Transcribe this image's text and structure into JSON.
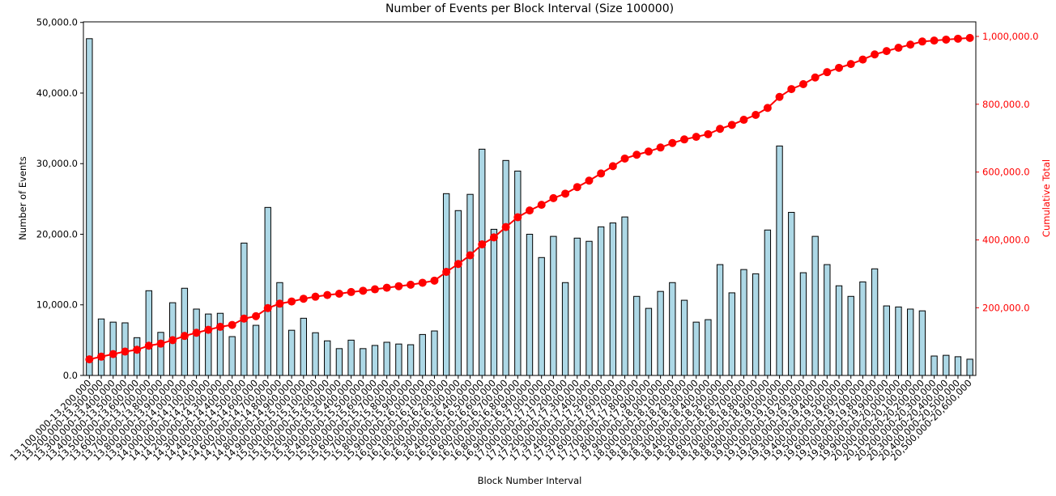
{
  "chart_data": {
    "type": "bar",
    "title": "Number of Events per Block Interval (Size 100000)",
    "xlabel": "Block Number Interval",
    "ylabel": "Number of Events",
    "y2label": "Cumulative Total",
    "categories": [
      "13,100,000-13,200,000",
      "13,200,000-13,300,000",
      "13,300,000-13,400,000",
      "13,400,000-13,500,000",
      "13,500,000-13,600,000",
      "13,600,000-13,700,000",
      "13,700,000-13,800,000",
      "13,800,000-13,900,000",
      "13,900,000-14,000,000",
      "14,000,000-14,100,000",
      "14,100,000-14,200,000",
      "14,200,000-14,300,000",
      "14,300,000-14,400,000",
      "14,400,000-14,500,000",
      "14,500,000-14,600,000",
      "14,600,000-14,700,000",
      "14,700,000-14,800,000",
      "14,800,000-14,900,000",
      "14,900,000-15,000,000",
      "15,000,000-15,100,000",
      "15,100,000-15,200,000",
      "15,200,000-15,300,000",
      "15,300,000-15,400,000",
      "15,400,000-15,500,000",
      "15,500,000-15,600,000",
      "15,600,000-15,700,000",
      "15,700,000-15,800,000",
      "15,800,000-15,900,000",
      "15,900,000-16,000,000",
      "16,000,000-16,100,000",
      "16,100,000-16,200,000",
      "16,200,000-16,300,000",
      "16,300,000-16,400,000",
      "16,400,000-16,500,000",
      "16,500,000-16,600,000",
      "16,600,000-16,700,000",
      "16,700,000-16,800,000",
      "16,800,000-16,900,000",
      "16,900,000-17,000,000",
      "17,000,000-17,100,000",
      "17,100,000-17,200,000",
      "17,200,000-17,300,000",
      "17,300,000-17,400,000",
      "17,400,000-17,500,000",
      "17,500,000-17,600,000",
      "17,600,000-17,700,000",
      "17,700,000-17,800,000",
      "17,800,000-17,900,000",
      "17,900,000-18,000,000",
      "18,000,000-18,100,000",
      "18,100,000-18,200,000",
      "18,200,000-18,300,000",
      "18,300,000-18,400,000",
      "18,400,000-18,500,000",
      "18,500,000-18,600,000",
      "18,600,000-18,700,000",
      "18,700,000-18,800,000",
      "18,800,000-18,900,000",
      "18,900,000-19,000,000",
      "19,000,000-19,100,000",
      "19,100,000-19,200,000",
      "19,200,000-19,300,000",
      "19,300,000-19,400,000",
      "19,400,000-19,500,000",
      "19,500,000-19,600,000",
      "19,600,000-19,700,000",
      "19,700,000-19,800,000",
      "19,800,000-19,900,000",
      "19,900,000-20,000,000",
      "20,000,000-20,100,000",
      "20,100,000-20,200,000",
      "20,200,000-20,300,000",
      "20,300,000-20,400,000",
      "20,400,000-20,500,000",
      "20,500,000-20,600,000"
    ],
    "series": [
      {
        "type": "bar",
        "color": "#add8e6",
        "values": [
          47700,
          8000,
          7550,
          7450,
          5350,
          12000,
          6100,
          10300,
          12350,
          9400,
          8700,
          8800,
          5500,
          18750,
          7100,
          23800,
          13150,
          6400,
          8100,
          6050,
          4900,
          3800,
          5000,
          3800,
          4250,
          4700,
          4450,
          4350,
          5800,
          6300,
          25750,
          23350,
          25650,
          32050,
          20700,
          30450,
          28950,
          20000,
          16700,
          19700,
          13150,
          19450,
          19000,
          21050,
          21600,
          22450,
          11200,
          9500,
          11900,
          13150,
          10650,
          7550,
          7900,
          15700,
          11700,
          15000,
          14400,
          20600,
          32500,
          23100,
          14550,
          19700,
          15700,
          12700,
          11200,
          13250,
          15100,
          9850,
          9700,
          9400,
          9150,
          2750,
          2850,
          2650,
          2300
        ]
      },
      {
        "type": "line",
        "color": "#ff0000",
        "axis": "y2",
        "values": [
          47700,
          55700,
          63250,
          70700,
          76050,
          88050,
          94150,
          104450,
          116800,
          126200,
          134900,
          143700,
          149200,
          167950,
          175050,
          198850,
          212000,
          218400,
          226500,
          232550,
          237450,
          241250,
          246250,
          250050,
          254300,
          259000,
          263450,
          267800,
          273600,
          279900,
          305650,
          329000,
          354650,
          386700,
          407400,
          437850,
          466800,
          486800,
          503500,
          523200,
          536350,
          555800,
          574800,
          595850,
          617450,
          639900,
          651100,
          660600,
          672500,
          685650,
          696300,
          703850,
          711750,
          727450,
          739150,
          754150,
          768550,
          789150,
          821650,
          844750,
          859300,
          879000,
          894700,
          907400,
          918600,
          931850,
          946950,
          956800,
          966500,
          975900,
          985050,
          987800,
          990650,
          993300,
          995600
        ]
      }
    ],
    "ylim": [
      0,
      50085
    ],
    "yticks": [
      {
        "value": 0,
        "label": "0.0"
      },
      {
        "value": 10000,
        "label": "10,000.0"
      },
      {
        "value": 20000,
        "label": "20,000.0"
      },
      {
        "value": 30000,
        "label": "30,000.0"
      },
      {
        "value": 40000,
        "label": "40,000.0"
      },
      {
        "value": 50000,
        "label": "50,000.0"
      }
    ],
    "y2lim": [
      305,
      1043000
    ],
    "y2ticks": [
      {
        "value": 200000,
        "label": "200,000.0"
      },
      {
        "value": 400000,
        "label": "400,000.0"
      },
      {
        "value": 600000,
        "label": "600,000.0"
      },
      {
        "value": 800000,
        "label": "800,000.0"
      },
      {
        "value": 1000000,
        "label": "1,000,000.0"
      }
    ]
  }
}
